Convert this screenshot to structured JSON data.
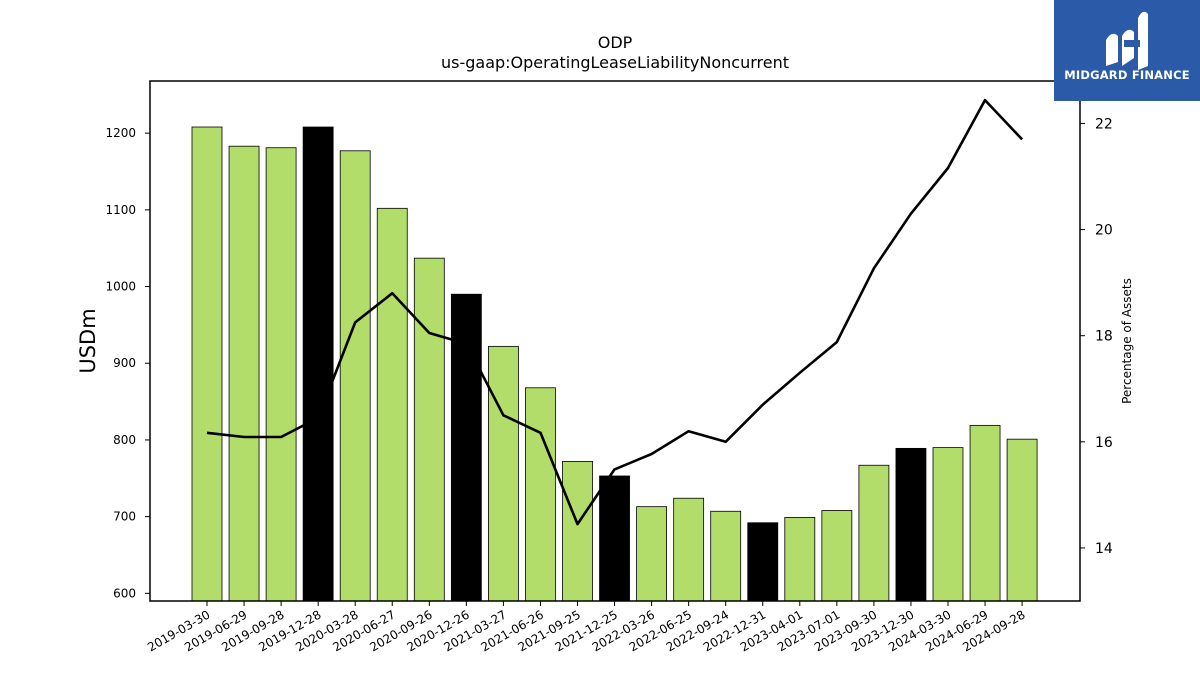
{
  "chart_data": {
    "type": "bar",
    "title": "ODP",
    "subtitle": "us-gaap:OperatingLeaseLiabilityNoncurrent",
    "xlabel": "",
    "ylabel": "USDm",
    "y2label": "Percentage of Assets",
    "ylim": [
      590,
      1268
    ],
    "y2lim": [
      13.0,
      22.8
    ],
    "yticks": [
      600,
      700,
      800,
      900,
      1000,
      1100,
      1200
    ],
    "y2ticks": [
      14,
      16,
      18,
      20,
      22
    ],
    "categories": [
      "2019-03-30",
      "2019-06-29",
      "2019-09-28",
      "2019-12-28",
      "2020-03-28",
      "2020-06-27",
      "2020-09-26",
      "2020-12-26",
      "2021-03-27",
      "2021-06-26",
      "2021-09-25",
      "2021-12-25",
      "2022-03-26",
      "2022-06-25",
      "2022-09-24",
      "2022-12-31",
      "2023-04-01",
      "2023-07-01",
      "2023-09-30",
      "2023-12-30",
      "2024-03-30",
      "2024-06-29",
      "2024-09-28"
    ],
    "series": [
      {
        "kind": "bar",
        "values": [
          1208,
          1183,
          1181,
          1208,
          1177,
          1102,
          1037,
          990,
          922,
          868,
          772,
          753,
          713,
          724,
          707,
          692,
          699,
          708,
          767,
          789,
          790,
          819,
          801
        ],
        "highlight": [
          false,
          false,
          false,
          true,
          false,
          false,
          false,
          true,
          false,
          false,
          false,
          true,
          false,
          false,
          false,
          true,
          false,
          false,
          false,
          true,
          false,
          false,
          false
        ],
        "color": "#b2dd6b",
        "highlight_color": "#000000"
      },
      {
        "kind": "line",
        "axis": "right",
        "values": [
          16.17,
          16.09,
          16.09,
          16.45,
          18.25,
          18.8,
          18.05,
          17.85,
          16.5,
          16.17,
          14.45,
          15.48,
          15.77,
          16.2,
          16.0,
          16.7,
          17.3,
          17.88,
          19.27,
          20.3,
          21.16,
          22.44,
          21.7
        ],
        "color": "#000000"
      }
    ]
  },
  "logo": {
    "text": "MIDGARD FINANCE"
  }
}
